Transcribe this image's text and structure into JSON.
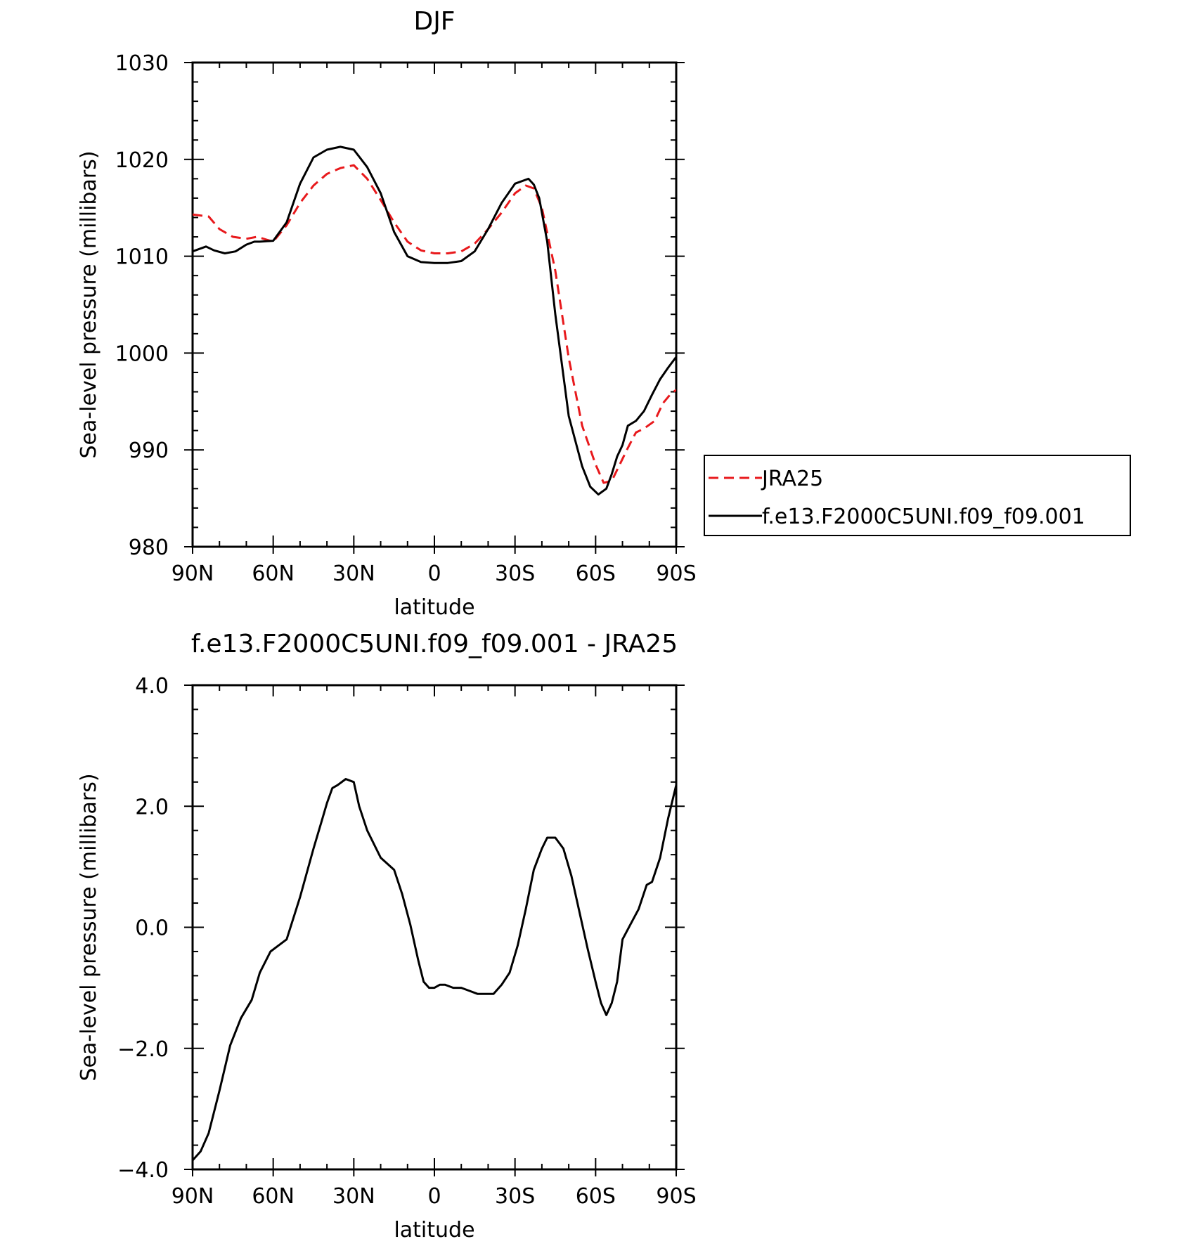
{
  "chart_data": [
    {
      "type": "line",
      "title": "DJF",
      "xlabel": "latitude",
      "ylabel": "Sea-level pressure (millibars)",
      "xlim": [
        90,
        -90
      ],
      "ylim": [
        980,
        1030
      ],
      "x_ticks": [
        90,
        60,
        30,
        0,
        -30,
        -60,
        -90
      ],
      "x_tick_labels": [
        "90N",
        "60N",
        "30N",
        "0",
        "30S",
        "60S",
        "90S"
      ],
      "y_ticks": [
        980,
        990,
        1000,
        1010,
        1020,
        1030
      ],
      "y_tick_labels": [
        "980",
        "990",
        "1000",
        "1010",
        "1020",
        "1030"
      ],
      "legend_position": "right",
      "series": [
        {
          "name": "JRA25",
          "color": "#e8191c",
          "dash": "dashed",
          "x": [
            90,
            84,
            80,
            75,
            70,
            66,
            60,
            55,
            50,
            45,
            40,
            35,
            30,
            25,
            20,
            15,
            10,
            5,
            0,
            -5,
            -10,
            -15,
            -20,
            -25,
            -30,
            -34,
            -37,
            -40,
            -45,
            -50,
            -55,
            -60,
            -63,
            -66,
            -69,
            -72,
            -75,
            -78,
            -82,
            -85,
            -88,
            -90
          ],
          "y": [
            1014.3,
            1014.1,
            1012.8,
            1012.0,
            1011.8,
            1012.0,
            1011.5,
            1013.2,
            1015.5,
            1017.3,
            1018.5,
            1019.1,
            1019.4,
            1018.0,
            1015.8,
            1013.5,
            1011.5,
            1010.6,
            1010.3,
            1010.3,
            1010.5,
            1011.3,
            1012.8,
            1014.5,
            1016.5,
            1017.3,
            1017.0,
            1015.0,
            1008.5,
            999.5,
            992.5,
            988.5,
            986.6,
            986.8,
            988.5,
            990.2,
            991.8,
            992.2,
            993.0,
            994.8,
            995.8,
            996.2
          ]
        },
        {
          "name": "f.e13.F2000C5UNI.f09_f09.001",
          "color": "#000000",
          "dash": "solid",
          "x": [
            90,
            85,
            82,
            78,
            74,
            70,
            67,
            65,
            60,
            55,
            50,
            45,
            40,
            35,
            30,
            25,
            20,
            15,
            10,
            5,
            0,
            -5,
            -10,
            -15,
            -20,
            -25,
            -30,
            -35,
            -37,
            -39,
            -42,
            -45,
            -50,
            -55,
            -58,
            -61,
            -64,
            -66,
            -68,
            -70,
            -72,
            -75,
            -78,
            -81,
            -84,
            -87,
            -90
          ],
          "y": [
            1010.5,
            1011.0,
            1010.6,
            1010.3,
            1010.5,
            1011.2,
            1011.5,
            1011.5,
            1011.6,
            1013.5,
            1017.5,
            1020.2,
            1021.0,
            1021.3,
            1021.0,
            1019.2,
            1016.5,
            1012.5,
            1010.0,
            1009.4,
            1009.3,
            1009.3,
            1009.5,
            1010.5,
            1012.8,
            1015.5,
            1017.5,
            1018.0,
            1017.4,
            1016.0,
            1011.5,
            1004.0,
            993.5,
            988.3,
            986.2,
            985.4,
            986.0,
            987.5,
            989.3,
            990.5,
            992.5,
            993.0,
            994.0,
            995.7,
            997.3,
            998.5,
            999.6
          ]
        }
      ]
    },
    {
      "type": "line",
      "title": "f.e13.F2000C5UNI.f09_f09.001 - JRA25",
      "xlabel": "latitude",
      "ylabel": "Sea-level pressure (millibars)",
      "xlim": [
        90,
        -90
      ],
      "ylim": [
        -4.0,
        4.0
      ],
      "x_ticks": [
        90,
        60,
        30,
        0,
        -30,
        -60,
        -90
      ],
      "x_tick_labels": [
        "90N",
        "60N",
        "30N",
        "0",
        "30S",
        "60S",
        "90S"
      ],
      "y_ticks": [
        -4.0,
        -2.0,
        0.0,
        2.0,
        4.0
      ],
      "y_tick_labels": [
        "−4.0",
        "−2.0",
        "0.0",
        "2.0",
        "4.0"
      ],
      "series": [
        {
          "color": "#000000",
          "dash": "solid",
          "x": [
            90,
            87,
            84,
            80,
            76,
            72,
            68,
            65,
            61,
            58,
            55,
            50,
            45,
            42,
            40,
            38,
            36,
            33,
            30,
            28,
            25,
            20,
            15,
            12,
            9,
            6,
            4,
            2,
            0,
            -2,
            -4,
            -7,
            -10,
            -13,
            -16,
            -19,
            -22,
            -25,
            -28,
            -31,
            -34,
            -37,
            -40,
            -42,
            -45,
            -48,
            -51,
            -54,
            -57,
            -60,
            -62,
            -64,
            -66,
            -68,
            -70,
            -73,
            -76,
            -79,
            -81,
            -84,
            -87,
            -90
          ],
          "y": [
            -3.85,
            -3.7,
            -3.4,
            -2.7,
            -1.95,
            -1.5,
            -1.2,
            -0.75,
            -0.4,
            -0.3,
            -0.2,
            0.5,
            1.3,
            1.75,
            2.05,
            2.3,
            2.35,
            2.45,
            2.4,
            2.0,
            1.6,
            1.15,
            0.95,
            0.55,
            0.05,
            -0.55,
            -0.9,
            -1.0,
            -1.0,
            -0.95,
            -0.95,
            -1.0,
            -1.0,
            -1.05,
            -1.1,
            -1.1,
            -1.1,
            -0.95,
            -0.75,
            -0.3,
            0.3,
            0.95,
            1.3,
            1.48,
            1.48,
            1.3,
            0.85,
            0.25,
            -0.35,
            -0.9,
            -1.25,
            -1.45,
            -1.25,
            -0.9,
            -0.2,
            0.05,
            0.3,
            0.7,
            0.75,
            1.15,
            1.8,
            2.35
          ]
        }
      ]
    }
  ]
}
